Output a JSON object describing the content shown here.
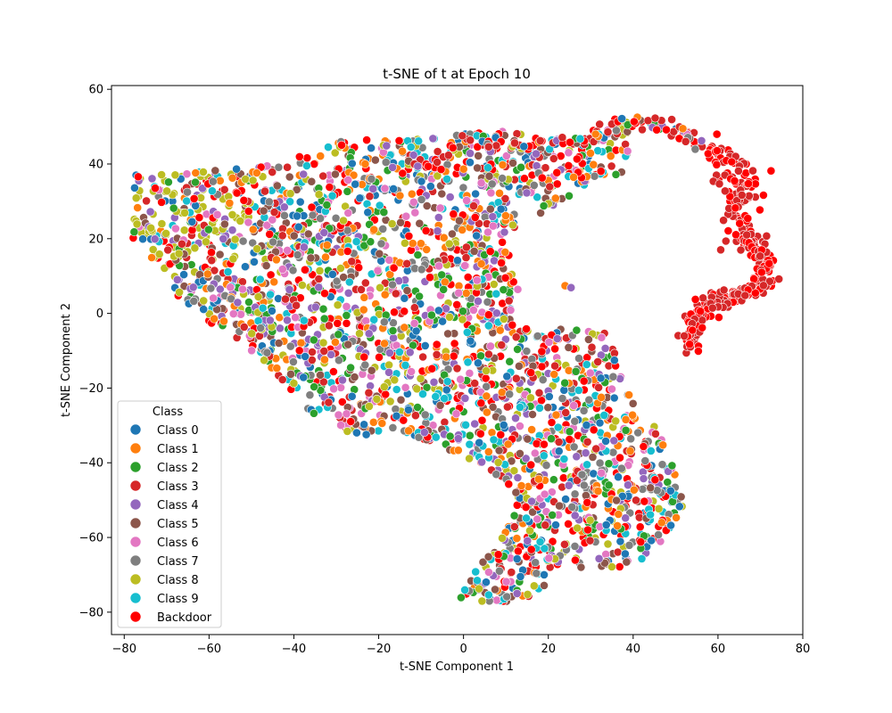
{
  "chart_data": {
    "type": "scatter",
    "title": "t-SNE of t at Epoch 10",
    "xlabel": "t-SNE Component 1",
    "ylabel": "t-SNE Component 2",
    "xlim": [
      -83,
      80
    ],
    "ylim": [
      -86,
      61
    ],
    "xticks": [
      -80,
      -60,
      -40,
      -20,
      0,
      20,
      40,
      60,
      80
    ],
    "yticks": [
      -80,
      -60,
      -40,
      -20,
      0,
      20,
      40,
      60
    ],
    "xtick_labels": [
      "−80",
      "−60",
      "−40",
      "−20",
      "0",
      "20",
      "40",
      "60",
      "80"
    ],
    "ytick_labels": [
      "−80",
      "−60",
      "−40",
      "−20",
      "0",
      "20",
      "40",
      "60"
    ],
    "grid": false,
    "legend": {
      "title": "Class",
      "placement": "lower-left"
    },
    "series": [
      {
        "name": "Class 0",
        "color": "#1f77b4"
      },
      {
        "name": "Class 1",
        "color": "#ff7f0e"
      },
      {
        "name": "Class 2",
        "color": "#2ca02c"
      },
      {
        "name": "Class 3",
        "color": "#d62728"
      },
      {
        "name": "Class 4",
        "color": "#9467bd"
      },
      {
        "name": "Class 5",
        "color": "#8c564b"
      },
      {
        "name": "Class 6",
        "color": "#e377c2"
      },
      {
        "name": "Class 7",
        "color": "#7f7f7f"
      },
      {
        "name": "Class 8",
        "color": "#bcbd22"
      },
      {
        "name": "Class 9",
        "color": "#17becf"
      },
      {
        "name": "Backdoor",
        "color": "#ff0000"
      }
    ],
    "backdoor_arm": [
      [
        -10,
        40
      ],
      [
        0,
        45
      ],
      [
        10,
        44
      ],
      [
        20,
        46
      ],
      [
        30,
        48
      ],
      [
        38,
        50
      ],
      [
        45,
        51
      ],
      [
        52,
        49
      ],
      [
        57,
        44
      ],
      [
        62,
        42
      ],
      [
        66,
        36
      ],
      [
        64,
        30
      ],
      [
        65,
        22
      ],
      [
        69,
        18
      ],
      [
        72,
        14
      ],
      [
        70,
        8
      ],
      [
        66,
        5
      ],
      [
        60,
        4
      ],
      [
        56,
        1
      ],
      [
        54,
        -3
      ],
      [
        54,
        -9
      ]
    ]
  }
}
